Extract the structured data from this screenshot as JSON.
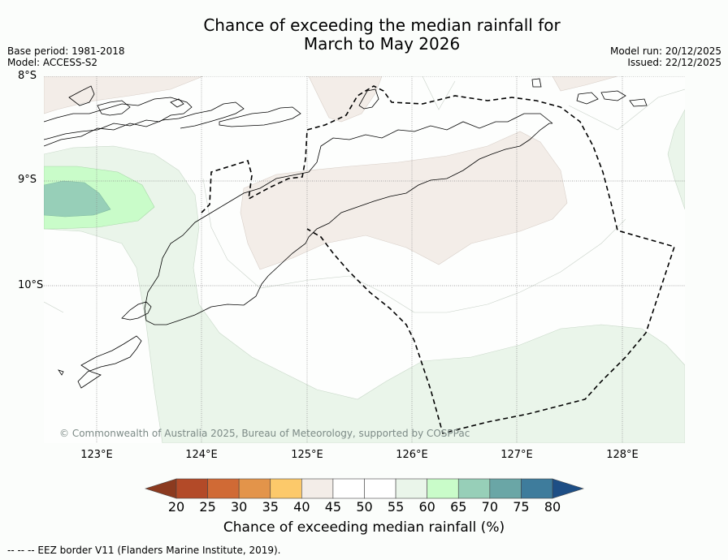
{
  "title_line1": "Chance of exceeding the median rainfall for",
  "title_line2": "March to May 2026",
  "meta": {
    "base_period": "Base period: 1981-2018",
    "model": "Model: ACCESS-S2",
    "model_run": "Model run: 20/12/2025",
    "issued": "Issued: 22/12/2025"
  },
  "latitudes": [
    "8°S",
    "9°S",
    "10°S"
  ],
  "longitudes": [
    "123°E",
    "124°E",
    "125°E",
    "126°E",
    "127°E",
    "128°E"
  ],
  "copyright": "© Commonwealth of Australia 2025, Bureau of Meteorology, supported by COSPPac",
  "colorbar": {
    "ticks": [
      "20",
      "25",
      "30",
      "35",
      "40",
      "45",
      "50",
      "55",
      "60",
      "65",
      "70",
      "75",
      "80"
    ],
    "colors": [
      "#8b3a1f",
      "#b34a28",
      "#d06a35",
      "#e3944a",
      "#fcc96a",
      "#f3ede8",
      "#ffffff",
      "#ffffff",
      "#eaf5ea",
      "#c9fcc9",
      "#97cfb8",
      "#6aa6a6",
      "#3e7c9c",
      "#1d4e85"
    ],
    "label": "Chance of exceeding median rainfall (%)"
  },
  "footnote": "--  --  -- EEZ border V11 (Flanders Marine Institute, 2019)."
}
